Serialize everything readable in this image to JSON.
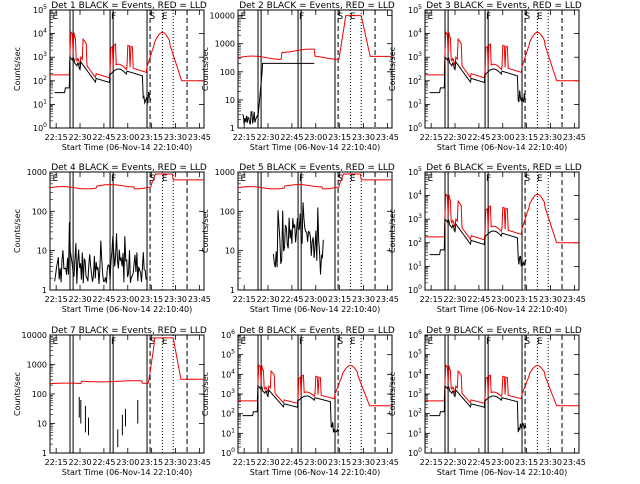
{
  "colors": {
    "events": "#000000",
    "lld": "#ee0000",
    "axes": "#000000",
    "background": "#ffffff"
  },
  "common": {
    "ylabel": "Counts/sec",
    "xlabel": "Start Time (06-Nov-14 22:10:40)",
    "xticks": [
      "22:15",
      "22:30",
      "22:45",
      "23:00",
      "23:15",
      "23:30",
      "23:45"
    ],
    "flags": [
      "E",
      "F",
      "S",
      "E"
    ]
  },
  "chart_data": [
    {
      "type": "line",
      "title": "Det 1 BLACK = Events, RED = LLD",
      "scale": "log",
      "yticks": [
        "10^0",
        "10^1",
        "10^2",
        "10^3",
        "10^4",
        "10^5"
      ],
      "ylim": [
        0,
        5
      ],
      "ypos": [
        0,
        1,
        2,
        3,
        4,
        5
      ],
      "profile": "A",
      "black_mode": "track",
      "series": [
        {
          "color_key": "events"
        },
        {
          "color_key": "lld"
        }
      ]
    },
    {
      "type": "line",
      "title": "Det 2 BLACK = Events, RED = LLD",
      "scale": "log",
      "yticks": [
        "1",
        "10",
        "100",
        "1000",
        "10000"
      ],
      "ylim": [
        0,
        4.2
      ],
      "ypos": [
        0,
        1,
        2,
        3,
        4
      ],
      "profile": "B",
      "black_mode": "box",
      "series": [
        {
          "color_key": "events"
        },
        {
          "color_key": "lld"
        }
      ]
    },
    {
      "type": "line",
      "title": "Det 3 BLACK = Events, RED = LLD",
      "scale": "log",
      "yticks": [
        "10^0",
        "10^1",
        "10^2",
        "10^3",
        "10^4",
        "10^5"
      ],
      "ylim": [
        0,
        5
      ],
      "ypos": [
        0,
        1,
        2,
        3,
        4,
        5
      ],
      "profile": "A",
      "black_mode": "track",
      "series": [
        {
          "color_key": "events"
        },
        {
          "color_key": "lld"
        }
      ]
    },
    {
      "type": "line",
      "title": "Det 4 BLACK = Events, RED = LLD",
      "scale": "log",
      "yticks": [
        "1",
        "10",
        "100",
        "1000"
      ],
      "ylim": [
        0,
        3
      ],
      "ypos": [
        0,
        1,
        2,
        3
      ],
      "profile": "C",
      "black_mode": "noisy1",
      "series": [
        {
          "color_key": "events"
        },
        {
          "color_key": "lld"
        }
      ]
    },
    {
      "type": "line",
      "title": "Det 5 BLACK = Events, RED = LLD",
      "scale": "log",
      "yticks": [
        "1",
        "10",
        "100",
        "1000"
      ],
      "ylim": [
        0,
        3
      ],
      "ypos": [
        0,
        1,
        2,
        3
      ],
      "profile": "C",
      "black_mode": "noisy2",
      "series": [
        {
          "color_key": "events"
        },
        {
          "color_key": "lld"
        }
      ]
    },
    {
      "type": "line",
      "title": "Det 6 BLACK = Events, RED = LLD",
      "scale": "log",
      "yticks": [
        "10^0",
        "10^1",
        "10^2",
        "10^3",
        "10^4",
        "10^5"
      ],
      "ylim": [
        0,
        5
      ],
      "ypos": [
        0,
        1,
        2,
        3,
        4,
        5
      ],
      "profile": "A",
      "black_mode": "track",
      "series": [
        {
          "color_key": "events"
        },
        {
          "color_key": "lld"
        }
      ]
    },
    {
      "type": "line",
      "title": "Det 7 BLACK = Events, RED = LLD",
      "scale": "log",
      "yticks": [
        "1",
        "10",
        "100",
        "1000",
        "10000"
      ],
      "ylim": [
        0,
        4
      ],
      "ypos": [
        0,
        1,
        2,
        3,
        4
      ],
      "profile": "D",
      "black_mode": "sparse",
      "series": [
        {
          "color_key": "events"
        },
        {
          "color_key": "lld"
        }
      ]
    },
    {
      "type": "line",
      "title": "Det 8 BLACK = Events, RED = LLD",
      "scale": "log",
      "yticks": [
        "10^0",
        "10^1",
        "10^2",
        "10^3",
        "10^4",
        "10^5",
        "10^6"
      ],
      "ylim": [
        0,
        6
      ],
      "ypos": [
        0,
        1,
        2,
        3,
        4,
        5,
        6
      ],
      "profile": "A",
      "black_mode": "track",
      "series": [
        {
          "color_key": "events"
        },
        {
          "color_key": "lld"
        }
      ]
    },
    {
      "type": "line",
      "title": "Det 9 BLACK = Events, RED = LLD",
      "scale": "log",
      "yticks": [
        "10^0",
        "10^1",
        "10^2",
        "10^3",
        "10^4",
        "10^5",
        "10^6"
      ],
      "ylim": [
        0,
        6
      ],
      "ypos": [
        0,
        1,
        2,
        3,
        4,
        5,
        6
      ],
      "profile": "A",
      "black_mode": "track",
      "series": [
        {
          "color_key": "events"
        },
        {
          "color_key": "lld"
        }
      ]
    }
  ]
}
